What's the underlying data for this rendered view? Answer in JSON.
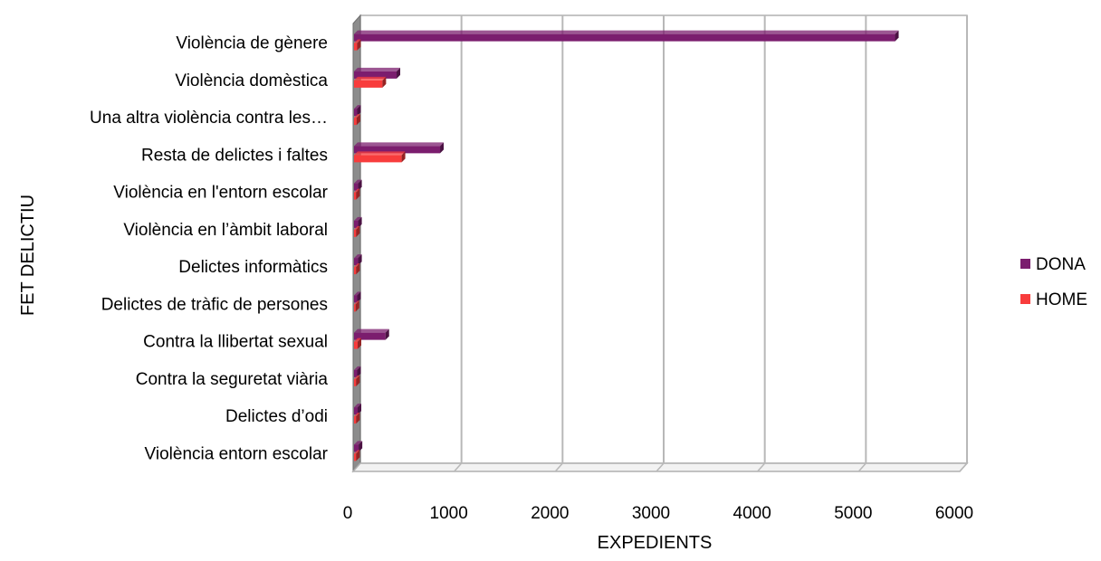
{
  "chart_data": {
    "type": "bar",
    "orientation": "horizontal",
    "categories": [
      "Violència de gènere",
      "Violència domèstica",
      "Una altra violència contra les…",
      "Resta de delictes i faltes",
      "Violència en l'entorn escolar",
      "Violència en l’àmbit laboral",
      "Delictes informàtics",
      "Delictes de tràfic de persones",
      "Contra la llibertat sexual",
      "Contra la seguretat viària",
      "Delictes d’odi",
      "Violència entorn escolar"
    ],
    "series": [
      {
        "name": "DONA",
        "color": "#7B1D6E",
        "values": [
          5360,
          430,
          40,
          860,
          50,
          50,
          50,
          40,
          320,
          40,
          45,
          55
        ]
      },
      {
        "name": "HOME",
        "color": "#F83C3C",
        "values": [
          40,
          290,
          35,
          480,
          30,
          30,
          30,
          25,
          45,
          30,
          30,
          30
        ]
      }
    ],
    "xlabel": "EXPEDIENTS",
    "ylabel": "FET DELICTIU",
    "xlim": [
      0,
      6000
    ],
    "xticks": [
      "0",
      "1000",
      "2000",
      "3000",
      "4000",
      "5000",
      "6000"
    ],
    "grid": true,
    "legend_position": "right"
  }
}
